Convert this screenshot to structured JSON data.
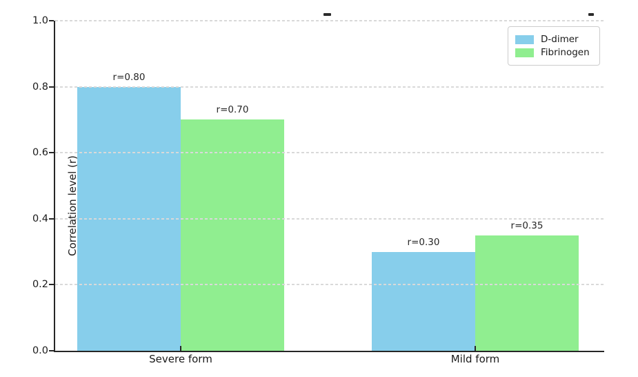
{
  "chart_data": {
    "type": "bar",
    "title_visible": "clipped at top edge",
    "categories": [
      "Severe form",
      "Mild form"
    ],
    "series": [
      {
        "name": "D-dimer",
        "color": "#87CEEB",
        "values": [
          0.8,
          0.3
        ],
        "labels": [
          "r=0.80",
          "r=0.30"
        ]
      },
      {
        "name": "Fibrinogen",
        "color": "#90EE90",
        "values": [
          0.7,
          0.35
        ],
        "labels": [
          "r=0.70",
          "r=0.35"
        ]
      }
    ],
    "xlabel": "",
    "ylabel": "Correlation level (r)",
    "ylim": [
      0.0,
      1.0
    ],
    "yticks": [
      "1.0",
      "0.8",
      "0.6",
      "0.4",
      "0.2",
      "0.0"
    ],
    "grid": "horizontal dashed, drawn over bars",
    "grid_color": "#d9d9d9",
    "axis_color": "#262626",
    "legend_position": "upper right"
  }
}
